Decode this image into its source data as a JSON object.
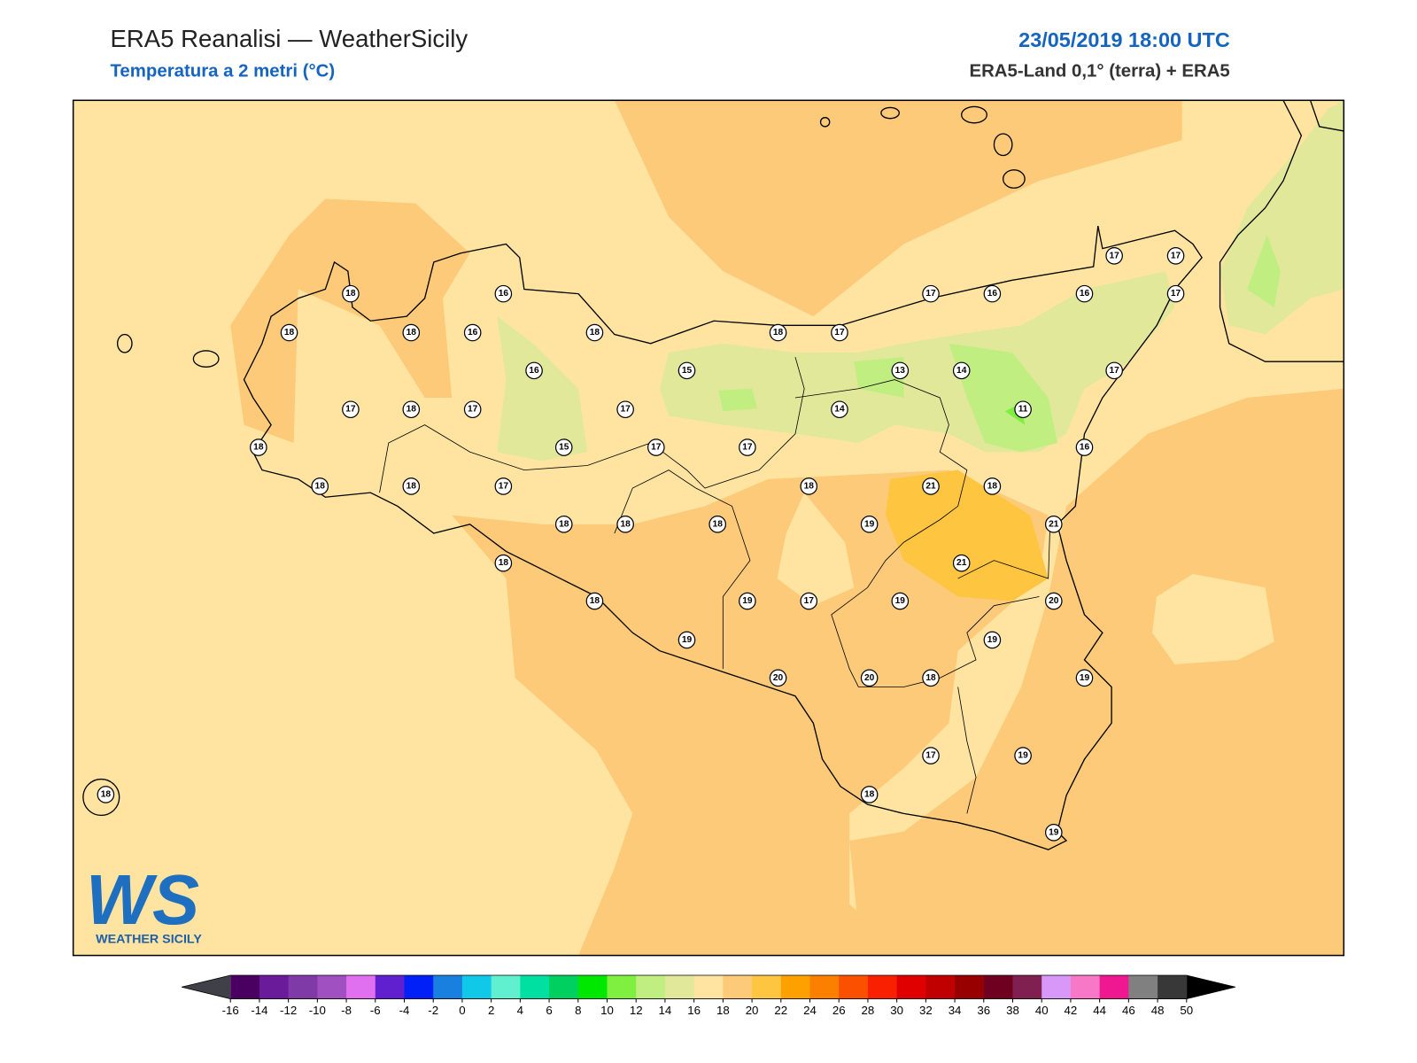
{
  "header": {
    "title": "ERA5 Reanalisi — WeatherSicily",
    "subtitle": "Temperatura a 2 metri (°C)",
    "datetime": "23/05/2019 18:00 UTC",
    "source": "ERA5-Land 0,1° (terra) + ERA5"
  },
  "stations": [
    18,
    16,
    18,
    18,
    16,
    18,
    18,
    17,
    17,
    16,
    16,
    17,
    17,
    17,
    16,
    15,
    13,
    14,
    17,
    17,
    18,
    17,
    17,
    14,
    11,
    18,
    15,
    17,
    17,
    16,
    18,
    18,
    17,
    18,
    21,
    18,
    18,
    18,
    18,
    19,
    21,
    18,
    21,
    18,
    19,
    17,
    19,
    20,
    19,
    19,
    20,
    20,
    18,
    19,
    17,
    19,
    18,
    18,
    19
  ],
  "logo": {
    "mark": "WS",
    "name": "WEATHER SICILY"
  },
  "colorbar": {
    "ticks": [
      -16,
      -14,
      -12,
      -10,
      -8,
      -6,
      -4,
      -2,
      0,
      2,
      4,
      6,
      8,
      10,
      12,
      14,
      16,
      18,
      20,
      22,
      24,
      26,
      28,
      30,
      32,
      34,
      36,
      38,
      40,
      42,
      44,
      46,
      48,
      50
    ],
    "colors": [
      "#4a0060",
      "#6a1b9a",
      "#7f3aa8",
      "#a050c0",
      "#e070f0",
      "#6020d0",
      "#0020f8",
      "#1a80e0",
      "#10c8e8",
      "#60f0d0",
      "#00e0a0",
      "#00d060",
      "#00e800",
      "#80f040",
      "#c0ee80",
      "#e2e89a",
      "#fee4a0",
      "#fcca78",
      "#fec640",
      "#fea000",
      "#fc8000",
      "#fa5000",
      "#f82000",
      "#e00000",
      "#c00000",
      "#980000",
      "#700020",
      "#802050",
      "#d898f8",
      "#f878c8",
      "#f01890",
      "#808080",
      "#383838"
    ],
    "under_color": "#404048",
    "over_color": "#000000"
  }
}
